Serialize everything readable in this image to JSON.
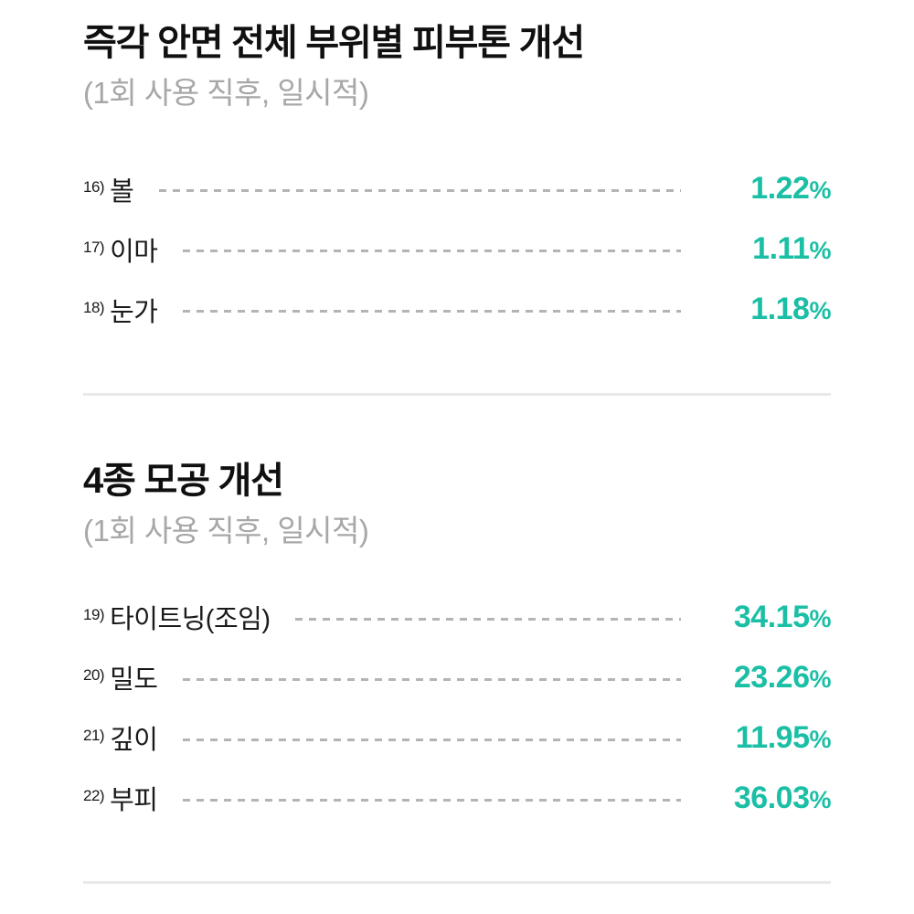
{
  "colors": {
    "accent_teal": "#1bbfa5",
    "title_text": "#101010",
    "subtitle_text": "#a7a7a7",
    "label_text": "#1a1a1a",
    "dash": "#b4b4b4",
    "divider": "#e9e9e9",
    "background": "#ffffff"
  },
  "sections": [
    {
      "title": "즉각 안면 전체 부위별 피부톤 개선",
      "subtitle": "(1회 사용 직후, 일시적)",
      "rows": [
        {
          "ref": "16)",
          "label": "볼",
          "value": "1.22",
          "unit": "%"
        },
        {
          "ref": "17)",
          "label": "이마",
          "value": "1.11",
          "unit": "%"
        },
        {
          "ref": "18)",
          "label": "눈가",
          "value": "1.18",
          "unit": "%"
        }
      ]
    },
    {
      "title": "4종 모공 개선",
      "subtitle": "(1회 사용 직후, 일시적)",
      "rows": [
        {
          "ref": "19)",
          "label": "타이트닝(조임)",
          "value": "34.15",
          "unit": "%"
        },
        {
          "ref": "20)",
          "label": "밀도",
          "value": "23.26",
          "unit": "%"
        },
        {
          "ref": "21)",
          "label": "깊이",
          "value": "11.95",
          "unit": "%"
        },
        {
          "ref": "22)",
          "label": "부피",
          "value": "36.03",
          "unit": "%"
        }
      ]
    }
  ],
  "chart_data": [
    {
      "type": "table",
      "title": "즉각 안면 전체 부위별 피부톤 개선",
      "subtitle": "(1회 사용 직후, 일시적)",
      "footnote_refs": [
        "16)",
        "17)",
        "18)"
      ],
      "categories": [
        "볼",
        "이마",
        "눈가"
      ],
      "values": [
        1.22,
        1.11,
        1.18
      ],
      "unit": "%"
    },
    {
      "type": "table",
      "title": "4종 모공 개선",
      "subtitle": "(1회 사용 직후, 일시적)",
      "footnote_refs": [
        "19)",
        "20)",
        "21)",
        "22)"
      ],
      "categories": [
        "타이트닝(조임)",
        "밀도",
        "깊이",
        "부피"
      ],
      "values": [
        34.15,
        23.26,
        11.95,
        36.03
      ],
      "unit": "%"
    }
  ]
}
